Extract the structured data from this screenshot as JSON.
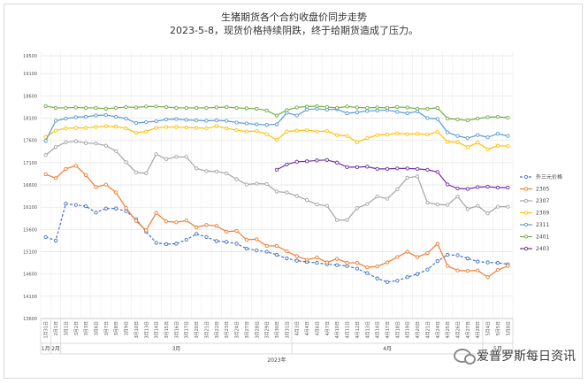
{
  "chart_data": {
    "type": "line",
    "title": "生猪期货各个合约收盘价同步走势",
    "subtitle": "2023-5-8，现货价格持续阴跌，终于给期货造成了压力。",
    "ylim": [
      13600,
      19600
    ],
    "yticks": [
      13600,
      14100,
      14600,
      15100,
      15600,
      16100,
      16600,
      17100,
      17600,
      18100,
      18600,
      19100,
      19500
    ],
    "grid": true,
    "legend_position": "right",
    "x": [
      "1月31日",
      "2月1日",
      "3月1日",
      "3月2日",
      "3月3日",
      "3月6日",
      "3月7日",
      "3月8日",
      "3月9日",
      "3月10日",
      "3月13日",
      "3月14日",
      "3月15日",
      "3月16日",
      "3月17日",
      "3月20日",
      "3月21日",
      "3月22日",
      "3月23日",
      "3月24日",
      "3月27日",
      "3月28日",
      "3月29日",
      "3月30日",
      "3月31日",
      "4月3日",
      "4月4日",
      "4月6日",
      "4月7日",
      "4月10日",
      "4月11日",
      "4月12日",
      "4月13日",
      "4月14日",
      "4月17日",
      "4月18日",
      "4月19日",
      "4月20日",
      "4月21日",
      "4月24日",
      "4月25日",
      "4月26日",
      "4月27日",
      "4月28日",
      "5月4日",
      "5月5日",
      "5月8日"
    ],
    "groups": [
      {
        "label": "1月",
        "from": 0,
        "to": 0
      },
      {
        "label": "2月",
        "from": 1,
        "to": 1
      },
      {
        "label": "3月",
        "from": 2,
        "to": 24
      },
      {
        "label": "4月",
        "from": 25,
        "to": 43
      },
      {
        "label": "5月",
        "from": 44,
        "to": 46
      }
    ],
    "xlabel": "2023年",
    "series": [
      {
        "name": "外三元价格",
        "color": "#4472c4",
        "dashed": true,
        "values": [
          15430,
          15350,
          16180,
          16150,
          16120,
          15980,
          16070,
          16070,
          16010,
          15830,
          15550,
          15300,
          15270,
          15280,
          15370,
          15500,
          15430,
          15340,
          15320,
          15280,
          15170,
          15130,
          15100,
          15030,
          14950,
          14900,
          14870,
          14850,
          14820,
          14800,
          14780,
          14720,
          14620,
          14500,
          14420,
          14450,
          14530,
          14600,
          14700,
          14890,
          15030,
          15020,
          14950,
          14880,
          14860,
          14850,
          14820
        ]
      },
      {
        "name": "2305",
        "color": "#ed7d31",
        "values": [
          16840,
          16750,
          16960,
          17030,
          16820,
          16550,
          16610,
          16430,
          16080,
          15790,
          15580,
          15970,
          15780,
          15760,
          15800,
          15650,
          15700,
          15680,
          15550,
          15570,
          15370,
          15380,
          15230,
          15230,
          15110,
          15000,
          14920,
          14970,
          14860,
          14940,
          14850,
          14850,
          14750,
          14770,
          14860,
          14980,
          15100,
          14980,
          15070,
          15280,
          14780,
          14680,
          14670,
          14680,
          14530,
          14690,
          14780
        ]
      },
      {
        "name": "2307",
        "color": "#a5a5a5",
        "values": [
          17270,
          17450,
          17560,
          17580,
          17540,
          17530,
          17480,
          17360,
          17110,
          16880,
          16860,
          17290,
          17180,
          17230,
          17230,
          16970,
          16910,
          16900,
          16860,
          16730,
          16610,
          16630,
          16620,
          16450,
          16430,
          16350,
          16260,
          16160,
          16130,
          15810,
          15810,
          16080,
          16170,
          16340,
          16290,
          16500,
          16760,
          16790,
          16200,
          16160,
          16150,
          16340,
          16060,
          16130,
          15960,
          16110,
          16110
        ]
      },
      {
        "name": "2309",
        "color": "#ffc000",
        "values": [
          17680,
          17820,
          17870,
          17880,
          17880,
          17900,
          17920,
          17910,
          17870,
          17770,
          17800,
          17880,
          17900,
          17900,
          17890,
          17880,
          17870,
          17920,
          17870,
          17830,
          17800,
          17810,
          17740,
          17610,
          17800,
          17820,
          17830,
          17800,
          17810,
          17720,
          17700,
          17560,
          17650,
          17720,
          17730,
          17760,
          17740,
          17750,
          17730,
          17790,
          17570,
          17560,
          17450,
          17550,
          17400,
          17480,
          17470
        ]
      },
      {
        "name": "2311",
        "color": "#5b9bd5",
        "values": [
          17590,
          18040,
          18090,
          18120,
          18130,
          18160,
          18170,
          18130,
          18090,
          17990,
          18010,
          18030,
          18070,
          18080,
          18060,
          18050,
          18040,
          18050,
          18040,
          18000,
          17980,
          17960,
          17950,
          17960,
          18220,
          18160,
          18290,
          18310,
          18290,
          18300,
          18210,
          18230,
          18260,
          18270,
          18280,
          18240,
          18210,
          18250,
          18100,
          18080,
          17780,
          17700,
          17650,
          17720,
          17670,
          17750,
          17700
        ]
      },
      {
        "name": "2401",
        "color": "#70ad47",
        "values": [
          18370,
          18330,
          18330,
          18340,
          18330,
          18330,
          18310,
          18330,
          18350,
          18340,
          18360,
          18360,
          18350,
          18330,
          18330,
          18330,
          18330,
          18340,
          18350,
          18330,
          18320,
          18310,
          18270,
          18160,
          18280,
          18340,
          18360,
          18370,
          18350,
          18330,
          18360,
          18340,
          18330,
          18340,
          18330,
          18350,
          18340,
          18310,
          18310,
          18330,
          18090,
          18070,
          18050,
          18090,
          18120,
          18130,
          18110
        ]
      },
      {
        "name": "2403",
        "color": "#7030a0",
        "values": [
          null,
          null,
          null,
          null,
          null,
          null,
          null,
          null,
          null,
          null,
          null,
          null,
          null,
          null,
          null,
          null,
          null,
          null,
          null,
          null,
          null,
          null,
          null,
          16940,
          17060,
          17120,
          17130,
          17150,
          17160,
          17100,
          17000,
          17000,
          17010,
          16960,
          16960,
          16970,
          16970,
          16960,
          16940,
          16890,
          16610,
          16520,
          16510,
          16550,
          16560,
          16540,
          16540
        ]
      }
    ]
  },
  "watermark": {
    "text": "爱普罗斯每日资讯",
    "icon": "wechat-icon"
  }
}
